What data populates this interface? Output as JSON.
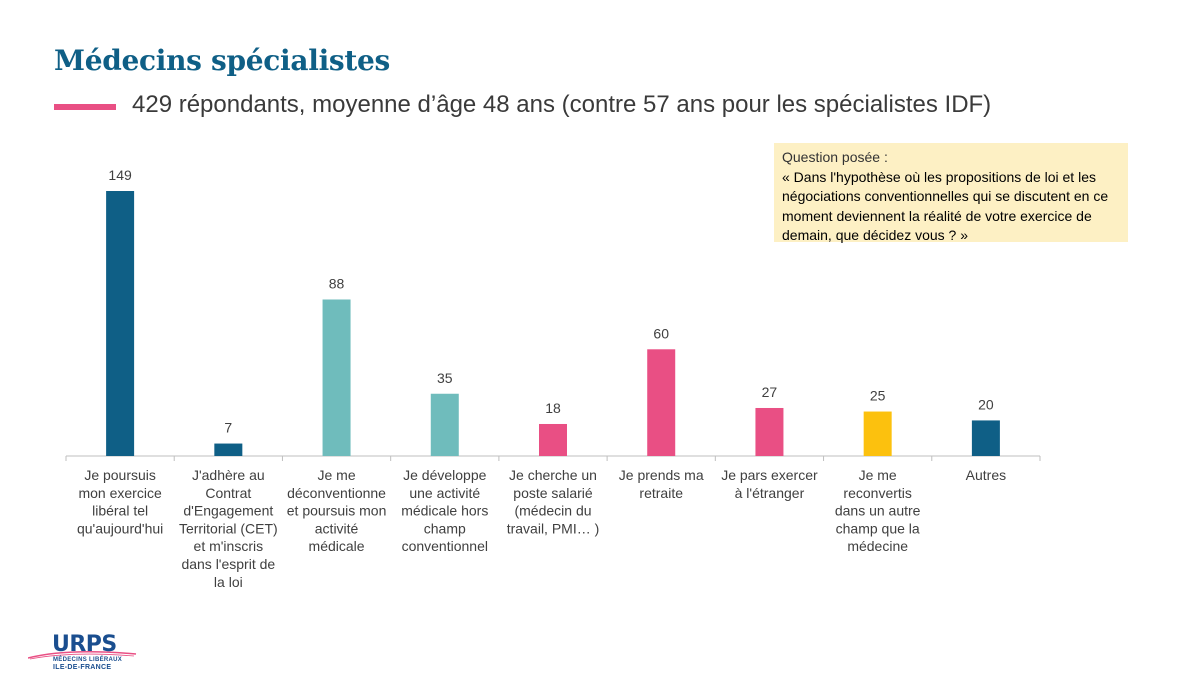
{
  "header": {
    "title": "Médecins spécialistes",
    "subtitle": "429 répondants, moyenne d’âge 48 ans (contre 57 ans pour les spécialistes IDF)"
  },
  "question": {
    "label": "Question posée :",
    "text": "« Dans l'hypothèse où les propositions de loi et les négociations conventionnelles qui se discutent en ce moment deviennent la réalité de votre exercice de demain, que décidez vous ? »"
  },
  "logo": {
    "name": "URPS",
    "line1": "MÉDECINS LIBÉRAUX",
    "line2": "ILE-DE-FRANCE"
  },
  "colors": {
    "title": "#0f5f86",
    "accent": "#e94f84",
    "question_bg": "#fdf0c4"
  },
  "chart_data": {
    "type": "bar",
    "categories": [
      "Je poursuis mon exercice libéral tel qu'aujourd'hui",
      "J'adhère au Contrat d'Engagement Territorial (CET) et m'inscris dans l'esprit de la loi",
      "Je me déconventionne et poursuis mon activité médicale",
      "Je développe une activité médicale hors champ conventionnel",
      "Je cherche un poste salarié (médecin du travail, PMI… )",
      "Je prends ma retraite",
      "Je pars exercer à l'étranger",
      "Je me reconvertis dans un autre champ que la médecine",
      "Autres"
    ],
    "category_lines": [
      [
        "Je poursuis",
        "mon exercice",
        "libéral tel",
        "qu'aujourd'hui"
      ],
      [
        "J'adhère au",
        "Contrat",
        "d'Engagement",
        "Territorial (CET)",
        "et m'inscris",
        "dans l'esprit de",
        "la loi"
      ],
      [
        "Je me",
        "déconventionne",
        "et poursuis mon",
        "activité",
        "médicale"
      ],
      [
        "Je développe",
        "une activité",
        "médicale hors",
        "champ",
        "conventionnel"
      ],
      [
        "Je cherche un",
        "poste salarié",
        "(médecin du",
        "travail, PMI… )"
      ],
      [
        "Je prends ma",
        "retraite"
      ],
      [
        "Je pars exercer",
        "à l'étranger"
      ],
      [
        "Je me",
        "reconvertis",
        "dans un autre",
        "champ que la",
        "médecine"
      ],
      [
        "Autres"
      ]
    ],
    "values": [
      149,
      7,
      88,
      35,
      18,
      60,
      27,
      25,
      20
    ],
    "colors": [
      "#0f5f86",
      "#0f5f86",
      "#6fbcbc",
      "#6fbcbc",
      "#e94f84",
      "#e94f84",
      "#e94f84",
      "#fcc10e",
      "#0f5f86"
    ],
    "data_labels": true,
    "grid": false,
    "legend": "none"
  }
}
